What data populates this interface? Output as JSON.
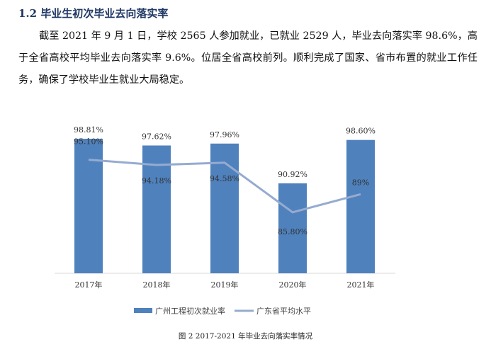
{
  "heading": "1.2 毕业生初次毕业去向落实率",
  "paragraph": "截至 2021 年 9 月 1 日，学校 2565 人参加就业，已就业 2529 人，毕业去向落实率 98.6%，高于全省高校平均毕业去向落实率 9.6%。位居全省高校前列。顺利完成了国家、省市布置的就业工作任务，确保了学校毕业生就业大局稳定。",
  "caption": "图 2 2017-2021 年毕业去向落实率情况",
  "chart_data": {
    "type": "bar",
    "categories": [
      "2017年",
      "2018年",
      "2019年",
      "2020年",
      "2021年"
    ],
    "series": [
      {
        "name": "广州工程初次就业率",
        "type": "bar",
        "values": [
          98.81,
          97.62,
          97.96,
          90.92,
          98.6
        ],
        "labels": [
          "98.81%",
          "97.62%",
          "97.96%",
          "90.92%",
          "98.60%"
        ],
        "color": "#4f81bd"
      },
      {
        "name": "广东省平均水平",
        "type": "line",
        "values": [
          95.1,
          94.18,
          94.58,
          85.8,
          89
        ],
        "labels": [
          "95.10%",
          "94.18%",
          "94.58%",
          "85.80%",
          "89%"
        ],
        "color": "#95abd0"
      }
    ],
    "ylim": [
      75,
      100
    ],
    "grid": false,
    "y_axis_visible": false,
    "legend": "bottom"
  }
}
